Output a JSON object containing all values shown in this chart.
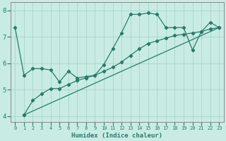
{
  "xlabel": "Humidex (Indice chaleur)",
  "bg_color": "#c8ece4",
  "grid_color": "#aad4c8",
  "line_color": "#2a7a6a",
  "xlim": [
    -0.5,
    23.5
  ],
  "ylim": [
    3.8,
    8.3
  ],
  "xticks": [
    0,
    1,
    2,
    3,
    4,
    5,
    6,
    7,
    8,
    9,
    10,
    11,
    12,
    13,
    14,
    15,
    16,
    17,
    18,
    19,
    20,
    21,
    22,
    23
  ],
  "yticks": [
    4,
    5,
    6,
    7,
    8
  ],
  "line1_x": [
    0,
    1,
    2,
    3,
    4,
    5,
    6,
    7,
    8,
    9,
    10,
    11,
    12,
    13,
    14,
    15,
    16,
    17,
    18,
    19,
    20,
    21,
    22,
    23
  ],
  "line1_y": [
    7.35,
    5.55,
    5.8,
    5.8,
    5.75,
    5.3,
    5.7,
    5.45,
    5.5,
    5.55,
    5.95,
    6.55,
    7.15,
    7.85,
    7.85,
    7.9,
    7.85,
    7.35,
    7.35,
    7.35,
    6.5,
    7.2,
    7.55,
    7.35
  ],
  "line2_x": [
    1,
    2,
    3,
    4,
    5,
    6,
    7,
    8,
    9,
    10,
    11,
    12,
    13,
    14,
    15,
    16,
    17,
    18,
    19,
    20,
    21,
    22,
    23
  ],
  "line2_y": [
    4.05,
    4.6,
    4.85,
    5.05,
    5.05,
    5.2,
    5.35,
    5.45,
    5.55,
    5.7,
    5.85,
    6.05,
    6.3,
    6.55,
    6.75,
    6.85,
    6.95,
    7.05,
    7.1,
    7.15,
    7.2,
    7.3,
    7.35
  ],
  "line3_x": [
    1,
    23
  ],
  "line3_y": [
    4.05,
    7.35
  ]
}
